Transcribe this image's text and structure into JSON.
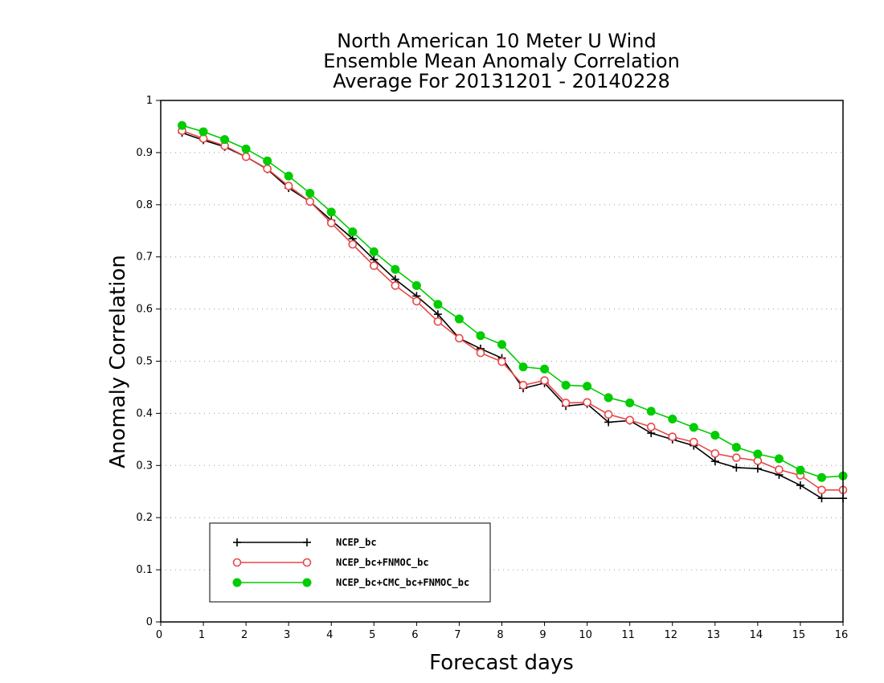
{
  "chart_data": {
    "type": "line",
    "title_lines": [
      "North American 10 Meter U Wind",
      "Ensemble Mean Anomaly Correlation",
      "Average For 20131201 - 20140228"
    ],
    "xlabel": "Forecast days",
    "ylabel": "Anomaly Correlation",
    "xlim": [
      0,
      16
    ],
    "ylim": [
      0,
      1
    ],
    "x_ticks": [
      "0",
      "1",
      "2",
      "3",
      "4",
      "5",
      "6",
      "7",
      "8",
      "9",
      "10",
      "11",
      "12",
      "13",
      "14",
      "15",
      "16"
    ],
    "y_ticks": [
      "0",
      "0.1",
      "0.2",
      "0.3",
      "0.4",
      "0.5",
      "0.6",
      "0.7",
      "0.8",
      "0.9",
      "1"
    ],
    "grid": "horizontal dotted",
    "legend_position": "bottom-left",
    "x": [
      0.5,
      1,
      1.5,
      2,
      2.5,
      3,
      3.5,
      4,
      4.5,
      5,
      5.5,
      6,
      6.5,
      7,
      7.5,
      8,
      8.5,
      9,
      9.5,
      10,
      10.5,
      11,
      11.5,
      12,
      12.5,
      13,
      13.5,
      14,
      14.5,
      15,
      15.5,
      16
    ],
    "series": [
      {
        "name": "NCEP_bc",
        "color": "#000000",
        "marker": "plus",
        "values": [
          0.938,
          0.924,
          0.911,
          0.892,
          0.868,
          0.832,
          0.806,
          0.77,
          0.735,
          0.695,
          0.657,
          0.625,
          0.59,
          0.544,
          0.524,
          0.506,
          0.448,
          0.458,
          0.414,
          0.418,
          0.383,
          0.386,
          0.362,
          0.35,
          0.338,
          0.308,
          0.296,
          0.294,
          0.282,
          0.262,
          0.237,
          0.237
        ]
      },
      {
        "name": "NCEP_bc+FNMOC_bc",
        "color": "#e84848",
        "marker": "open-circle",
        "values": [
          0.942,
          0.927,
          0.913,
          0.892,
          0.869,
          0.836,
          0.806,
          0.765,
          0.724,
          0.683,
          0.645,
          0.615,
          0.576,
          0.544,
          0.516,
          0.499,
          0.454,
          0.463,
          0.42,
          0.421,
          0.398,
          0.387,
          0.374,
          0.355,
          0.345,
          0.323,
          0.315,
          0.309,
          0.292,
          0.281,
          0.253,
          0.253
        ]
      },
      {
        "name": "NCEP_bc+CMC_bc+FNMOC_bc",
        "color": "#00cc00",
        "marker": "filled-circle",
        "values": [
          0.952,
          0.94,
          0.925,
          0.907,
          0.884,
          0.855,
          0.822,
          0.786,
          0.748,
          0.71,
          0.676,
          0.645,
          0.609,
          0.581,
          0.549,
          0.532,
          0.489,
          0.485,
          0.454,
          0.452,
          0.43,
          0.42,
          0.404,
          0.389,
          0.373,
          0.358,
          0.335,
          0.322,
          0.313,
          0.291,
          0.277,
          0.28
        ]
      }
    ]
  }
}
